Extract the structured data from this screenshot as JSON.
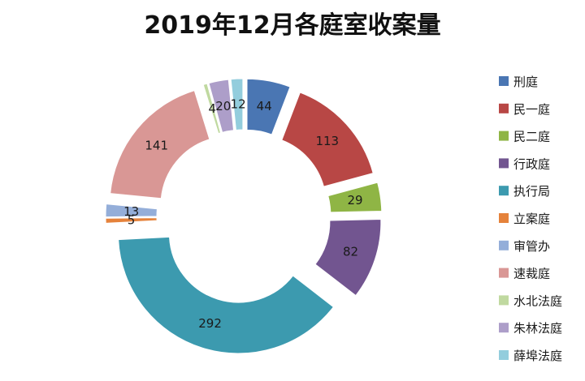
{
  "chart_data": {
    "type": "pie",
    "variant": "exploded-donut",
    "title": "2019年12月各庭室收案量",
    "legend": "right",
    "slices": [
      {
        "label": "刑庭",
        "value": 44,
        "color": "#4a76b3"
      },
      {
        "label": "民一庭",
        "value": 113,
        "color": "#b84745"
      },
      {
        "label": "民二庭",
        "value": 29,
        "color": "#8fb545"
      },
      {
        "label": "行政庭",
        "value": 82,
        "color": "#725590"
      },
      {
        "label": "执行局",
        "value": 292,
        "color": "#3c9aaf"
      },
      {
        "label": "立案庭",
        "value": 5,
        "color": "#e5823b"
      },
      {
        "label": "审管办",
        "value": 13,
        "color": "#94aed9"
      },
      {
        "label": "速裁庭",
        "value": 141,
        "color": "#d99795"
      },
      {
        "label": "水北法庭",
        "value": 4,
        "color": "#c0d9a0"
      },
      {
        "label": "朱林法庭",
        "value": 20,
        "color": "#ad9ec9"
      },
      {
        "label": "薛埠法庭",
        "value": 12,
        "color": "#93cddd"
      }
    ]
  }
}
